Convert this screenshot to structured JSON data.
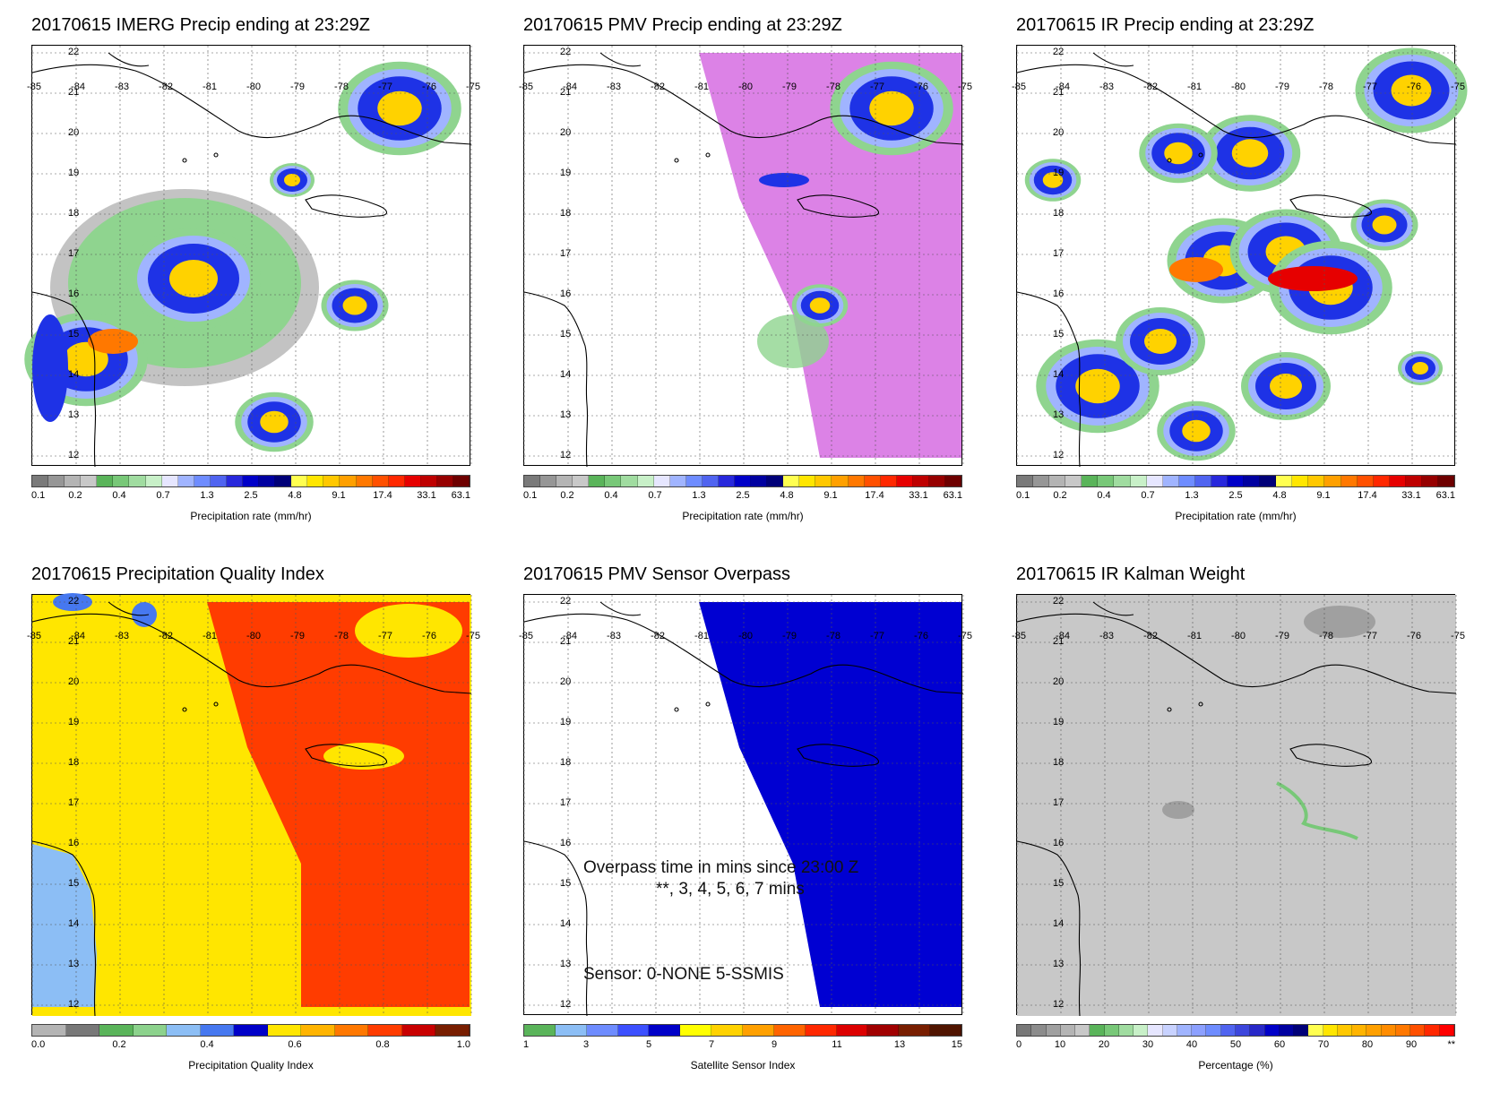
{
  "lon_labels": [
    "-85",
    "-84",
    "-83",
    "-82",
    "-81",
    "-80",
    "-79",
    "-78",
    "-77",
    "-76",
    "-75"
  ],
  "lat_labels": [
    "22",
    "21",
    "20",
    "19",
    "18",
    "17",
    "16",
    "15",
    "14",
    "13",
    "12"
  ],
  "panels": [
    {
      "title": "20170615 IMERG Precip ending at 23:29Z",
      "colorbar_title": "Precipitation rate (mm/hr)",
      "ticks": [
        "0.1",
        "0.2",
        "0.4",
        "0.7",
        "1.3",
        "2.5",
        "4.8",
        "9.1",
        "17.4",
        "33.1",
        "63.1"
      ],
      "colors": [
        "#7a7a7a",
        "#969696",
        "#b4b4b4",
        "#c8c8c8",
        "#5ab45a",
        "#78c878",
        "#a0dca0",
        "#c8f0c8",
        "#e6e6ff",
        "#a0b4ff",
        "#6e8cff",
        "#5064f0",
        "#2828dc",
        "#0000c8",
        "#0000a0",
        "#000078",
        "#ffff50",
        "#ffe600",
        "#ffc800",
        "#ffa000",
        "#ff7800",
        "#ff5000",
        "#ff2800",
        "#e60000",
        "#be0000",
        "#960000",
        "#6e0000"
      ]
    },
    {
      "title": "20170615 PMV Precip ending at 23:29Z",
      "colorbar_title": "Precipitation rate (mm/hr)",
      "ticks": [
        "0.1",
        "0.2",
        "0.4",
        "0.7",
        "1.3",
        "2.5",
        "4.8",
        "9.1",
        "17.4",
        "33.1",
        "63.1"
      ],
      "colors": [
        "#7a7a7a",
        "#969696",
        "#b4b4b4",
        "#c8c8c8",
        "#5ab45a",
        "#78c878",
        "#a0dca0",
        "#c8f0c8",
        "#e6e6ff",
        "#a0b4ff",
        "#6e8cff",
        "#5064f0",
        "#2828dc",
        "#0000c8",
        "#0000a0",
        "#000078",
        "#ffff50",
        "#ffe600",
        "#ffc800",
        "#ffa000",
        "#ff7800",
        "#ff5000",
        "#ff2800",
        "#e60000",
        "#be0000",
        "#960000",
        "#6e0000"
      ]
    },
    {
      "title": "20170615 IR Precip ending at 23:29Z",
      "colorbar_title": "Precipitation rate (mm/hr)",
      "ticks": [
        "0.1",
        "0.2",
        "0.4",
        "0.7",
        "1.3",
        "2.5",
        "4.8",
        "9.1",
        "17.4",
        "33.1",
        "63.1"
      ],
      "colors": [
        "#7a7a7a",
        "#969696",
        "#b4b4b4",
        "#c8c8c8",
        "#5ab45a",
        "#78c878",
        "#a0dca0",
        "#c8f0c8",
        "#e6e6ff",
        "#a0b4ff",
        "#6e8cff",
        "#5064f0",
        "#2828dc",
        "#0000c8",
        "#0000a0",
        "#000078",
        "#ffff50",
        "#ffe600",
        "#ffc800",
        "#ffa000",
        "#ff7800",
        "#ff5000",
        "#ff2800",
        "#e60000",
        "#be0000",
        "#960000",
        "#6e0000"
      ]
    },
    {
      "title": "20170615 Precipitation Quality Index",
      "colorbar_title": "Precipitation Quality Index",
      "ticks": [
        "0.0",
        "0.2",
        "0.4",
        "0.6",
        "0.8",
        "1.0"
      ],
      "colors": [
        "#b4b4b4",
        "#787878",
        "#5ab45a",
        "#8cd28c",
        "#8cbef5",
        "#4678f0",
        "#0000c8",
        "#ffe600",
        "#ffb400",
        "#ff7800",
        "#ff3c00",
        "#c80000",
        "#781e00"
      ]
    },
    {
      "title": "20170615 PMV Sensor Overpass",
      "colorbar_title": "Satellite Sensor Index",
      "ticks": [
        "1",
        "3",
        "5",
        "7",
        "9",
        "11",
        "13",
        "15"
      ],
      "colors": [
        "#5ab45a",
        "#8cbef5",
        "#6e8cff",
        "#3c50ff",
        "#0000c8",
        "#ffff00",
        "#ffd200",
        "#ffa000",
        "#ff6400",
        "#ff2800",
        "#dc0000",
        "#a00000",
        "#781e00",
        "#501400"
      ],
      "annotation": {
        "line1": "Overpass time in mins since 23:00 Z",
        "line2": "**, 3, 4, 5, 6, 7 mins",
        "line3": "Sensor:   0-NONE  5-SSMIS"
      }
    },
    {
      "title": "20170615 IR Kalman Weight",
      "colorbar_title": "Percentage (%)",
      "ticks": [
        "0",
        "10",
        "20",
        "30",
        "40",
        "50",
        "60",
        "70",
        "80",
        "90",
        "**"
      ],
      "colors": [
        "#787878",
        "#8c8c8c",
        "#a0a0a0",
        "#b4b4b4",
        "#c8c8c8",
        "#5ab45a",
        "#78c878",
        "#a0dca0",
        "#c8f0c8",
        "#e6e6ff",
        "#c8d2ff",
        "#a0b4ff",
        "#8ca0ff",
        "#6e8cff",
        "#5064f0",
        "#3c46dc",
        "#2828c8",
        "#0000c8",
        "#0000a0",
        "#000078",
        "#ffff50",
        "#ffe600",
        "#ffc800",
        "#ffb400",
        "#ffa000",
        "#ff8c00",
        "#ff7800",
        "#ff5000",
        "#ff2800",
        "#ff0000"
      ]
    }
  ],
  "palette": {
    "pink_region": "#dc82e6",
    "blue_region": "#0000d2",
    "yellow_region": "#ffe600",
    "red_region": "#ff3c00",
    "lightblue_region": "#8cbef5",
    "gray_field": "#c8c8c8",
    "coast": "#000000",
    "grid": "#555555"
  }
}
